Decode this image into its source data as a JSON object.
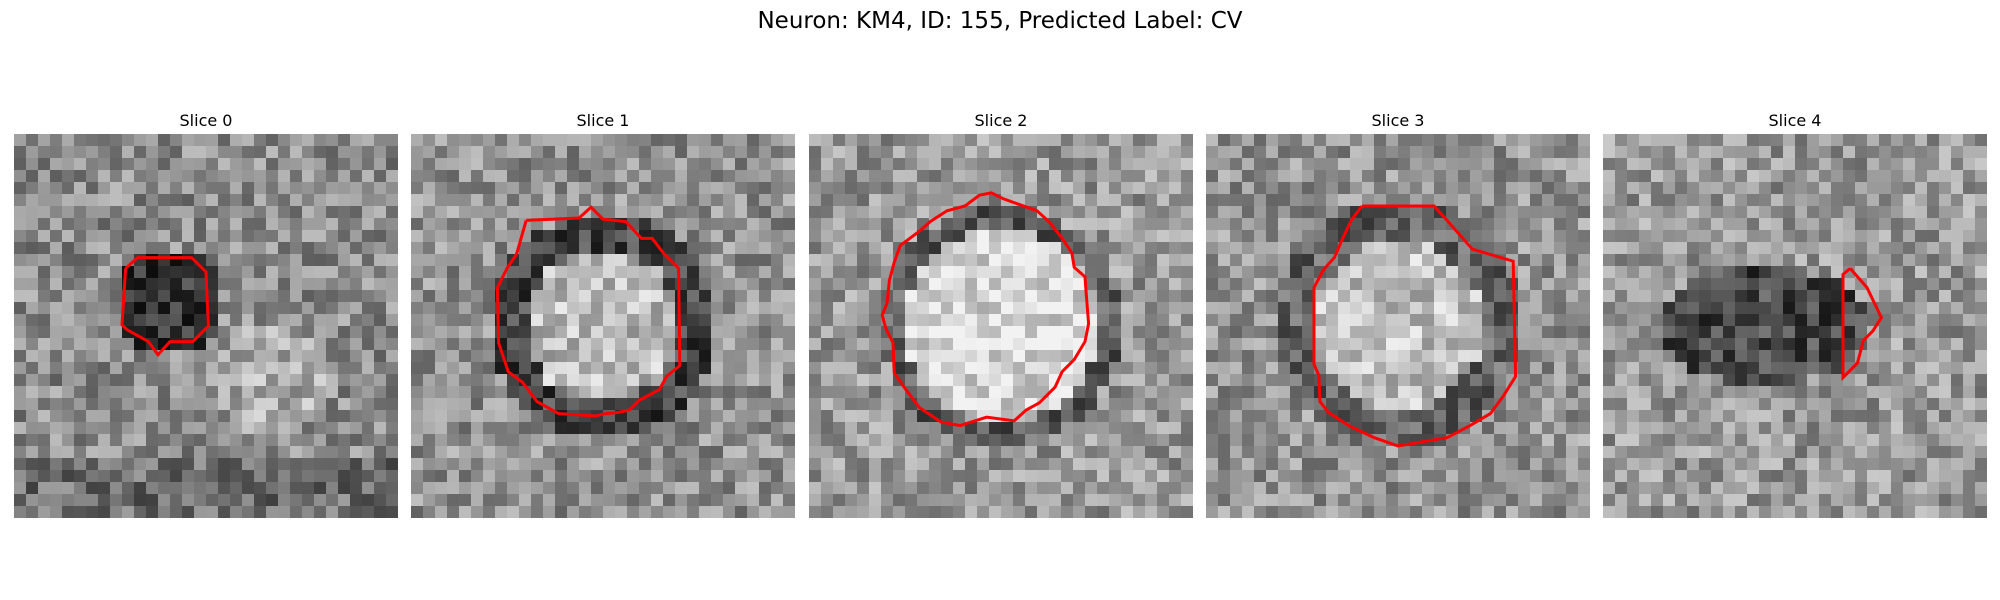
{
  "figure": {
    "title": "Neuron: KM4, ID: 155, Predicted Label: CV",
    "contour_color": "#ff0000"
  },
  "panels": [
    {
      "title": "Slice 0",
      "pattern": "dark-blob"
    },
    {
      "title": "Slice 1",
      "pattern": "bright-ring"
    },
    {
      "title": "Slice 2",
      "pattern": "bright-disk"
    },
    {
      "title": "Slice 3",
      "pattern": "bright-ring-soft"
    },
    {
      "title": "Slice 4",
      "pattern": "dark-band"
    }
  ]
}
